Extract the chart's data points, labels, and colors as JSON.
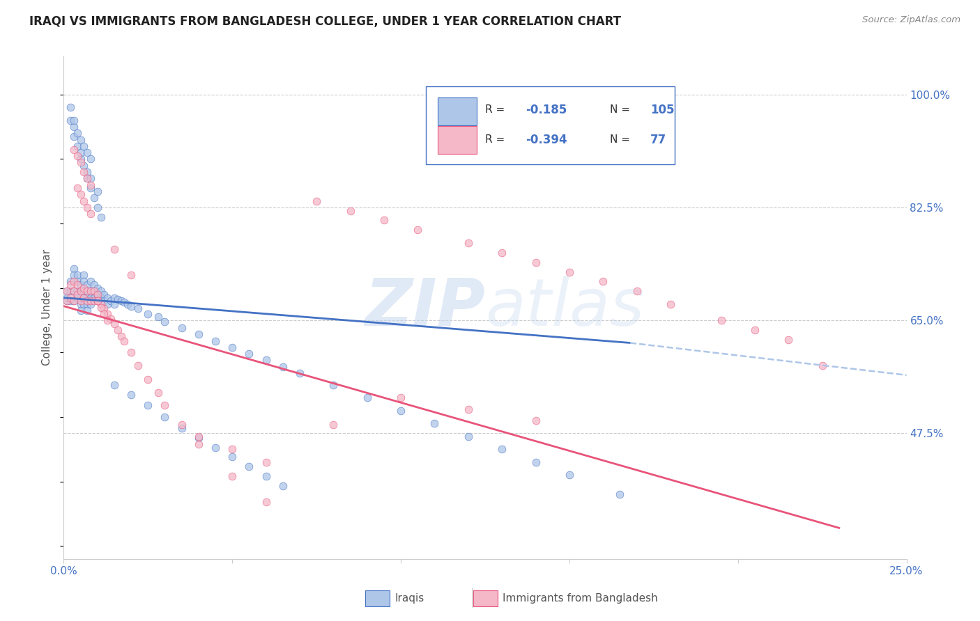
{
  "title": "IRAQI VS IMMIGRANTS FROM BANGLADESH COLLEGE, UNDER 1 YEAR CORRELATION CHART",
  "source": "Source: ZipAtlas.com",
  "ylabel": "College, Under 1 year",
  "xlim": [
    0.0,
    0.25
  ],
  "ylim": [
    0.28,
    1.06
  ],
  "yticks_right": [
    0.475,
    0.65,
    0.825,
    1.0
  ],
  "yticklabels_right": [
    "47.5%",
    "65.0%",
    "82.5%",
    "100.0%"
  ],
  "background_color": "#ffffff",
  "watermark_zip": "ZIP",
  "watermark_atlas": "atlas",
  "color_iraqi_fill": "#aec6e8",
  "color_iraqi_edge": "#4472c4",
  "color_bang_fill": "#f4b8c8",
  "color_bang_edge": "#e8547a",
  "color_line_iraqi": "#4472c4",
  "color_line_bang": "#e8547a",
  "color_line_iraqi_dash": "#aec6e8",
  "dot_size": 60,
  "dot_alpha": 0.75,
  "iraqi_trend_x0": 0.0,
  "iraqi_trend_y0": 0.685,
  "iraqi_trend_x1": 0.168,
  "iraqi_trend_y1": 0.615,
  "iraqi_trend_dash_x1": 0.25,
  "iraqi_trend_dash_y1": 0.565,
  "bang_trend_x0": 0.0,
  "bang_trend_y0": 0.672,
  "bang_trend_x1": 0.23,
  "bang_trend_y1": 0.328,
  "iraqi_pts_x": [
    0.001,
    0.001,
    0.001,
    0.002,
    0.002,
    0.002,
    0.003,
    0.003,
    0.003,
    0.003,
    0.004,
    0.004,
    0.004,
    0.004,
    0.005,
    0.005,
    0.005,
    0.005,
    0.005,
    0.006,
    0.006,
    0.006,
    0.006,
    0.006,
    0.007,
    0.007,
    0.007,
    0.007,
    0.007,
    0.008,
    0.008,
    0.008,
    0.008,
    0.009,
    0.009,
    0.009,
    0.01,
    0.01,
    0.01,
    0.011,
    0.011,
    0.012,
    0.012,
    0.013,
    0.013,
    0.014,
    0.015,
    0.015,
    0.016,
    0.017,
    0.018,
    0.019,
    0.02,
    0.022,
    0.025,
    0.028,
    0.03,
    0.035,
    0.04,
    0.045,
    0.05,
    0.055,
    0.06,
    0.065,
    0.07,
    0.08,
    0.09,
    0.1,
    0.11,
    0.12,
    0.13,
    0.14,
    0.15,
    0.165,
    0.007,
    0.008,
    0.009,
    0.01,
    0.011,
    0.005,
    0.006,
    0.007,
    0.008,
    0.003,
    0.004,
    0.005,
    0.002,
    0.003,
    0.004,
    0.005,
    0.006,
    0.007,
    0.008,
    0.01,
    0.015,
    0.02,
    0.025,
    0.03,
    0.035,
    0.04,
    0.045,
    0.05,
    0.055,
    0.06,
    0.065,
    0.002,
    0.003
  ],
  "iraqi_pts_y": [
    0.695,
    0.685,
    0.68,
    0.71,
    0.695,
    0.68,
    0.73,
    0.72,
    0.695,
    0.68,
    0.72,
    0.71,
    0.695,
    0.685,
    0.705,
    0.695,
    0.685,
    0.675,
    0.665,
    0.72,
    0.71,
    0.695,
    0.685,
    0.675,
    0.705,
    0.695,
    0.685,
    0.675,
    0.665,
    0.71,
    0.695,
    0.685,
    0.675,
    0.705,
    0.695,
    0.685,
    0.7,
    0.69,
    0.68,
    0.695,
    0.685,
    0.69,
    0.68,
    0.685,
    0.675,
    0.68,
    0.685,
    0.675,
    0.682,
    0.68,
    0.678,
    0.675,
    0.672,
    0.668,
    0.66,
    0.655,
    0.648,
    0.638,
    0.628,
    0.618,
    0.608,
    0.598,
    0.588,
    0.578,
    0.568,
    0.55,
    0.53,
    0.51,
    0.49,
    0.47,
    0.45,
    0.43,
    0.41,
    0.38,
    0.87,
    0.855,
    0.84,
    0.825,
    0.81,
    0.9,
    0.89,
    0.88,
    0.87,
    0.935,
    0.92,
    0.91,
    0.96,
    0.95,
    0.94,
    0.93,
    0.92,
    0.91,
    0.9,
    0.85,
    0.55,
    0.535,
    0.518,
    0.5,
    0.483,
    0.468,
    0.453,
    0.438,
    0.423,
    0.408,
    0.393,
    0.98,
    0.96
  ],
  "bang_pts_x": [
    0.001,
    0.001,
    0.002,
    0.002,
    0.003,
    0.003,
    0.003,
    0.004,
    0.004,
    0.005,
    0.005,
    0.006,
    0.006,
    0.007,
    0.007,
    0.008,
    0.008,
    0.009,
    0.009,
    0.01,
    0.01,
    0.011,
    0.012,
    0.013,
    0.014,
    0.015,
    0.016,
    0.017,
    0.018,
    0.02,
    0.022,
    0.025,
    0.028,
    0.03,
    0.035,
    0.04,
    0.05,
    0.06,
    0.075,
    0.085,
    0.095,
    0.105,
    0.12,
    0.13,
    0.14,
    0.15,
    0.16,
    0.17,
    0.18,
    0.195,
    0.205,
    0.215,
    0.225,
    0.004,
    0.005,
    0.006,
    0.007,
    0.008,
    0.003,
    0.004,
    0.005,
    0.006,
    0.007,
    0.008,
    0.015,
    0.02,
    0.01,
    0.011,
    0.012,
    0.013,
    0.04,
    0.05,
    0.06,
    0.08,
    0.1,
    0.12,
    0.14
  ],
  "bang_pts_y": [
    0.695,
    0.68,
    0.705,
    0.685,
    0.71,
    0.695,
    0.68,
    0.705,
    0.69,
    0.695,
    0.68,
    0.7,
    0.685,
    0.695,
    0.68,
    0.695,
    0.68,
    0.695,
    0.68,
    0.69,
    0.68,
    0.675,
    0.668,
    0.66,
    0.652,
    0.645,
    0.635,
    0.625,
    0.618,
    0.6,
    0.58,
    0.558,
    0.538,
    0.518,
    0.488,
    0.458,
    0.408,
    0.368,
    0.835,
    0.82,
    0.805,
    0.79,
    0.77,
    0.755,
    0.74,
    0.725,
    0.71,
    0.695,
    0.675,
    0.65,
    0.635,
    0.62,
    0.58,
    0.855,
    0.845,
    0.835,
    0.825,
    0.815,
    0.915,
    0.905,
    0.895,
    0.88,
    0.87,
    0.86,
    0.76,
    0.72,
    0.68,
    0.67,
    0.66,
    0.65,
    0.47,
    0.45,
    0.43,
    0.488,
    0.53,
    0.512,
    0.495
  ]
}
